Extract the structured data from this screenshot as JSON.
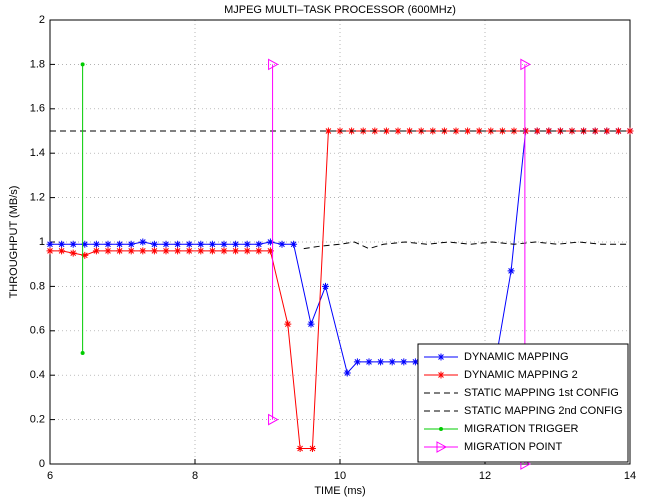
{
  "chart_data": {
    "type": "line",
    "title": "MJPEG MULTI–TASK PROCESSOR (600MHz)",
    "x_label": "TIME (ms)",
    "y_label": "THROUGHPUT (MB/s)",
    "xlim": [
      6,
      14
    ],
    "xticks": [
      6,
      8,
      10,
      12,
      14
    ],
    "ylim": [
      0,
      2
    ],
    "yticks": [
      0,
      0.2,
      0.4,
      0.6,
      0.8,
      1,
      1.2,
      1.4,
      1.6,
      1.8,
      2
    ],
    "grid": true,
    "legend": "lower right",
    "series": [
      {
        "name": "DYNAMIC MAPPING",
        "color": "#0000ff",
        "marker": "star",
        "dash": "solid",
        "x": [
          6.0,
          6.16,
          6.32,
          6.48,
          6.64,
          6.8,
          6.96,
          7.12,
          7.28,
          7.44,
          7.6,
          7.76,
          7.92,
          8.08,
          8.24,
          8.4,
          8.56,
          8.72,
          8.88,
          9.04,
          9.2,
          9.36,
          9.6,
          9.8,
          10.1,
          10.24,
          10.4,
          10.56,
          10.72,
          10.88,
          11.04,
          11.2,
          11.36,
          11.52,
          11.68,
          11.84,
          12.0,
          12.16,
          12.36,
          12.56,
          12.72,
          12.88,
          13.04,
          13.2,
          13.36,
          13.52,
          13.68,
          13.84,
          14.0
        ],
        "values": [
          0.99,
          0.99,
          0.99,
          0.99,
          0.99,
          0.99,
          0.99,
          0.99,
          1.0,
          0.99,
          0.99,
          0.99,
          0.99,
          0.99,
          0.99,
          0.99,
          0.99,
          0.99,
          0.99,
          1.0,
          0.99,
          0.99,
          0.63,
          0.8,
          0.41,
          0.46,
          0.46,
          0.46,
          0.46,
          0.46,
          0.46,
          0.46,
          0.46,
          0.46,
          0.46,
          0.46,
          0.46,
          0.49,
          0.87,
          1.5,
          1.5,
          1.5,
          1.5,
          1.5,
          1.5,
          1.5,
          1.5,
          1.5,
          1.5
        ]
      },
      {
        "name": "DYNAMIC MAPPING 2",
        "color": "#ff0000",
        "marker": "star",
        "dash": "solid",
        "x": [
          6.0,
          6.16,
          6.32,
          6.48,
          6.64,
          6.8,
          6.96,
          7.12,
          7.28,
          7.44,
          7.6,
          7.76,
          7.92,
          8.08,
          8.24,
          8.4,
          8.56,
          8.72,
          8.88,
          9.04,
          9.28,
          9.45,
          9.62,
          9.84,
          10.0,
          10.16,
          10.32,
          10.48,
          10.64,
          10.8,
          10.96,
          11.12,
          11.28,
          11.44,
          11.6,
          11.76,
          11.92,
          12.08,
          12.24,
          12.4,
          12.56,
          12.72,
          12.88,
          13.04,
          13.2,
          13.36,
          13.52,
          13.68,
          13.84,
          14.0
        ],
        "values": [
          0.96,
          0.96,
          0.95,
          0.94,
          0.96,
          0.96,
          0.96,
          0.96,
          0.96,
          0.96,
          0.96,
          0.96,
          0.96,
          0.96,
          0.96,
          0.96,
          0.96,
          0.96,
          0.96,
          0.96,
          0.63,
          0.07,
          0.07,
          1.5,
          1.5,
          1.5,
          1.5,
          1.5,
          1.5,
          1.5,
          1.5,
          1.5,
          1.5,
          1.5,
          1.5,
          1.5,
          1.5,
          1.5,
          1.5,
          1.5,
          1.5,
          1.5,
          1.5,
          1.5,
          1.5,
          1.5,
          1.5,
          1.5,
          1.5,
          1.5
        ]
      },
      {
        "name": "STATIC MAPPING 1st CONFIG",
        "color": "#000000",
        "marker": "none",
        "dash": "dashed",
        "x": [
          6,
          14
        ],
        "values": [
          1.5,
          1.5
        ]
      },
      {
        "name": "STATIC MAPPING 2nd CONFIG",
        "color": "#000000",
        "marker": "none",
        "dash": "dashed",
        "x": [
          9.5,
          9.7,
          10.0,
          10.2,
          10.4,
          10.6,
          10.9,
          11.2,
          11.5,
          11.8,
          12.1,
          12.4,
          12.7,
          13.0,
          13.3,
          13.6,
          14.0
        ],
        "values": [
          0.97,
          0.98,
          0.99,
          1.0,
          0.97,
          0.99,
          1.0,
          0.99,
          1.0,
          0.99,
          1.0,
          0.99,
          1.0,
          0.99,
          1.0,
          0.99,
          0.99
        ]
      },
      {
        "name": "MIGRATION TRIGGER",
        "color": "#00cc00",
        "marker": "dot",
        "dash": "solid",
        "x": [
          6.45,
          6.45
        ],
        "values": [
          1.8,
          0.5
        ]
      },
      {
        "name": "MIGRATION POINT",
        "color": "#ff00ff",
        "marker": "triangle",
        "dash": "solid",
        "x": [
          9.07,
          9.07,
          9.07,
          12.55,
          12.55
        ],
        "values": [
          0.2,
          1.8,
          null,
          1.8,
          0
        ]
      }
    ]
  }
}
